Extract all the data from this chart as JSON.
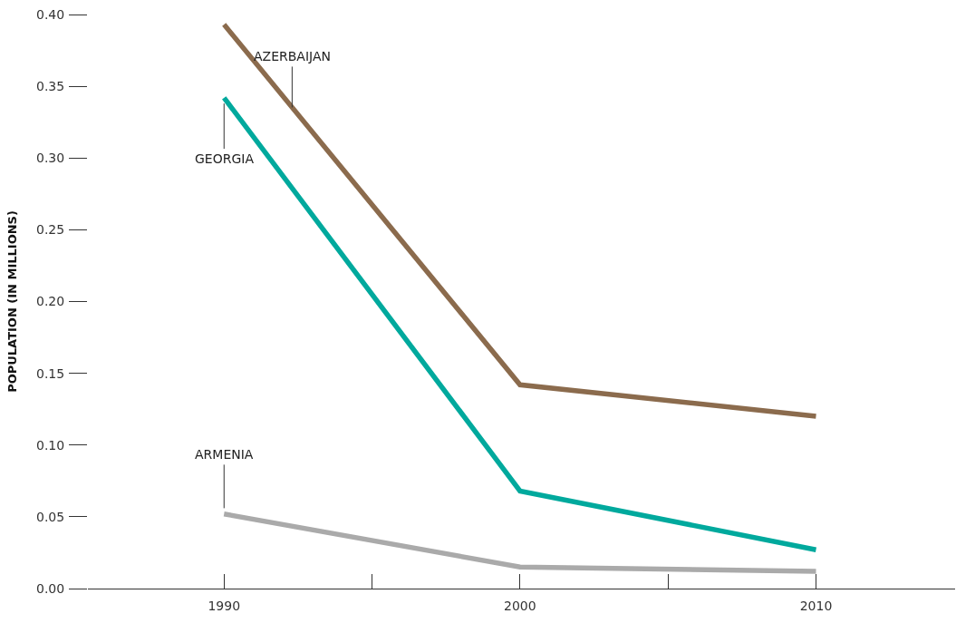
{
  "chart_data": {
    "type": "line",
    "ylabel": "POPULATION (IN MILLIONS)",
    "x": [
      1990,
      2000,
      2010
    ],
    "xlim": [
      1985.4,
      2014.7
    ],
    "xticks": [
      1990,
      {
        "value": 1995,
        "label": null
      },
      2000,
      {
        "value": 2005,
        "label": null
      },
      2010
    ],
    "ylim": [
      0,
      0.4
    ],
    "yticks": [
      {
        "value": 0,
        "label": "0.00"
      },
      0.05,
      {
        "value": 0.1,
        "label": "0.10"
      },
      0.15,
      {
        "value": 0.2,
        "label": "0.20"
      },
      0.25,
      {
        "value": 0.3,
        "label": "0.30"
      },
      0.35,
      {
        "value": 0.4,
        "label": "0.40"
      }
    ],
    "grid": false,
    "legend": false,
    "marker": "none",
    "line_style": "solid",
    "series": [
      {
        "name": "AZERBAIJAN",
        "color": "#8b6b4d",
        "values": [
          0.393,
          0.142,
          0.12
        ]
      },
      {
        "name": "GEORGIA",
        "color": "#00a99d",
        "values": [
          0.342,
          0.068,
          0.027
        ]
      },
      {
        "name": "ARMENIA",
        "color": "#aaaaaa",
        "values": [
          0.052,
          0.015,
          0.012
        ]
      }
    ]
  }
}
